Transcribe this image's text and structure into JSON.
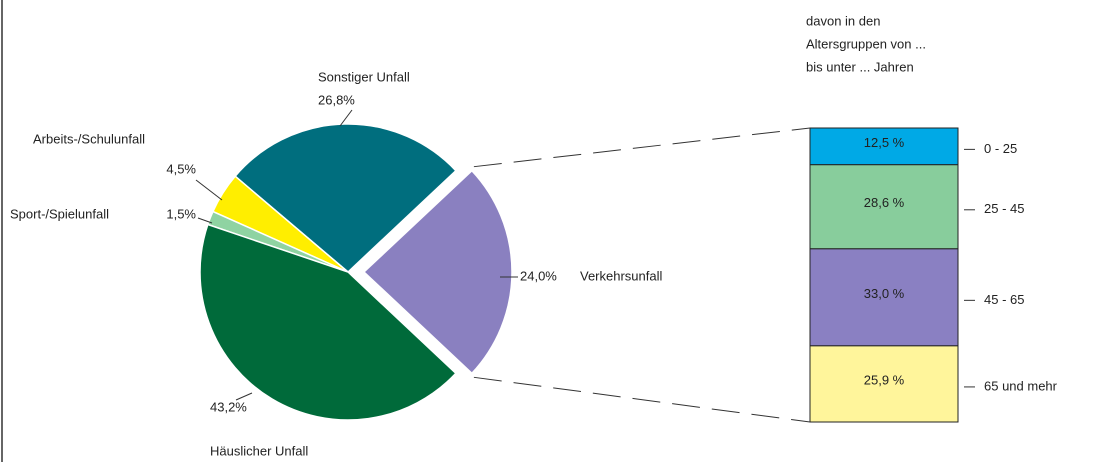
{
  "chart_data": [
    {
      "type": "pie",
      "categories": [
        "Verkehrsunfall",
        "Sonstiger Unfall",
        "Arbeits-/Schulunfall",
        "Sport-/Spielunfall",
        "Häuslicher Unfall"
      ],
      "values": [
        24.0,
        26.8,
        4.5,
        1.5,
        43.2
      ],
      "value_labels": [
        "24,0%",
        "26,8%",
        "4,5%",
        "1,5%",
        "43,2%"
      ],
      "colors": [
        "#8a80c0",
        "#006e7e",
        "#ffee00",
        "#8fd3a2",
        "#006a3a"
      ]
    },
    {
      "type": "stacked-bar",
      "title": [
        "davon in den",
        "Altersgruppen von ...",
        "bis unter ... Jahren"
      ],
      "categories": [
        "0 - 25",
        "25 - 45",
        "45 - 65",
        "65 und mehr"
      ],
      "values": [
        12.5,
        28.6,
        33.0,
        25.9
      ],
      "value_labels": [
        "12,5 %",
        "28,6 %",
        "33,0 %",
        "25,9 %"
      ],
      "colors": [
        "#00a9e6",
        "#88cd9c",
        "#8a80c2",
        "#fff59b"
      ]
    }
  ]
}
